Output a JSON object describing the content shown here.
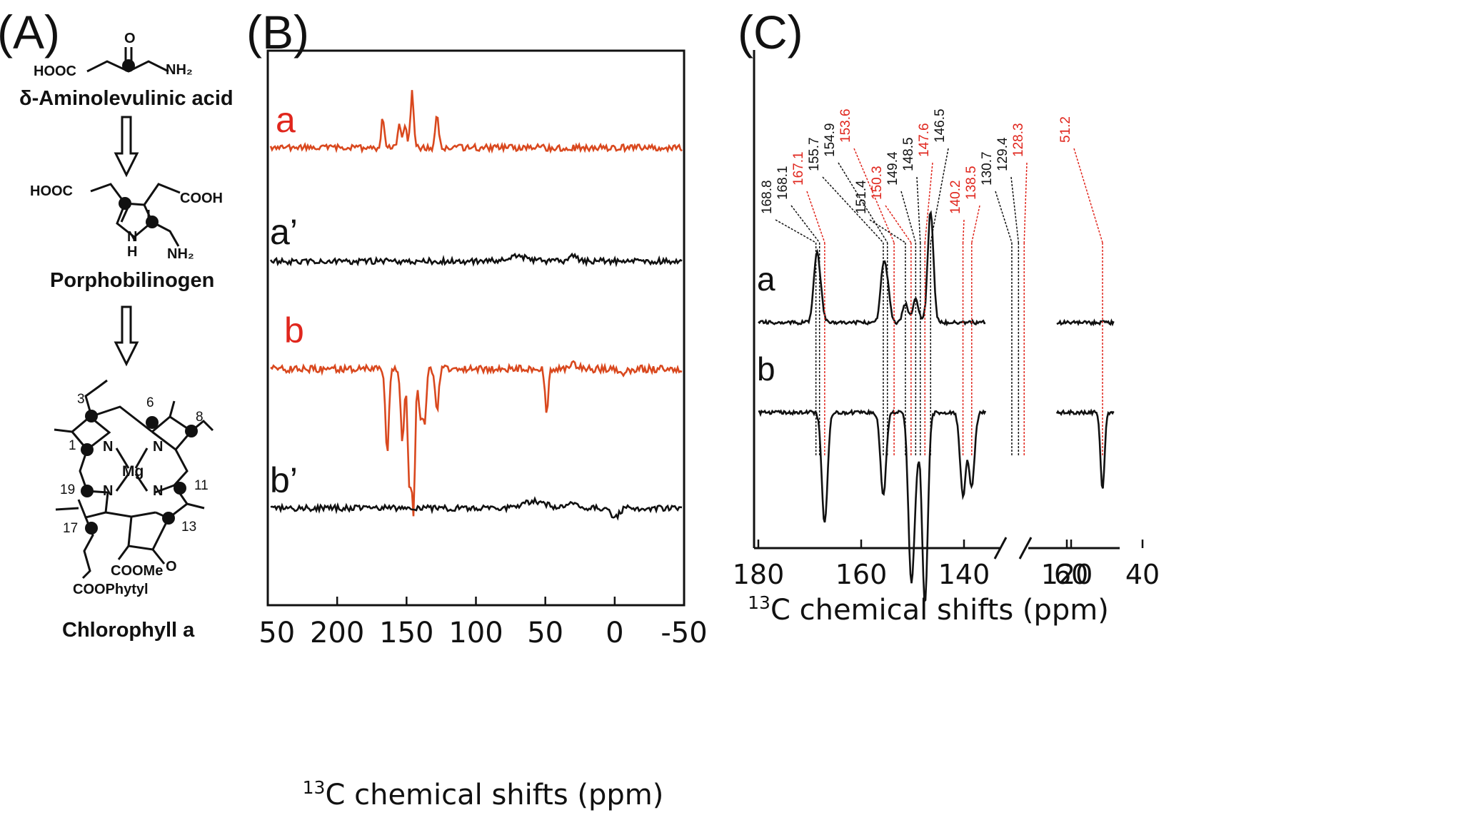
{
  "figure": {
    "panel_labels": [
      "(A)",
      "(B)",
      "(C)"
    ]
  },
  "panel_a": {
    "molecules": [
      {
        "name": "δ-Aminolevulinic acid",
        "groups": [
          "HOOC",
          "O",
          "NH₂"
        ]
      },
      {
        "name": "Porphobilinogen",
        "groups": [
          "HOOC",
          "COOH",
          "N",
          "H",
          "NH₂"
        ]
      },
      {
        "name": "Chlorophyll a",
        "groups": [
          "N",
          "N",
          "N",
          "N",
          "Mg",
          "COOMe",
          "O",
          "COOPhytyl"
        ]
      }
    ],
    "position_labels": [
      "3",
      "6",
      "8",
      "1",
      "19",
      "11",
      "17",
      "13"
    ]
  },
  "chart_data": [
    {
      "type": "line",
      "panel": "(B)",
      "xlabel": "¹³C chemical shifts (ppm)",
      "xlim": [
        250,
        -50
      ],
      "x_ticks": [
        250,
        200,
        150,
        100,
        50,
        0,
        -50
      ],
      "frame": "box",
      "grid": false,
      "series": [
        {
          "name": "a",
          "color": "#d9481e",
          "peaks": [
            {
              "x": 167,
              "y": 0.3
            },
            {
              "x": 155,
              "y": 0.22
            },
            {
              "x": 151,
              "y": 0.2
            },
            {
              "x": 146,
              "y": 0.55
            },
            {
              "x": 128,
              "y": 0.32
            }
          ]
        },
        {
          "name": "a’",
          "color": "#111111",
          "peaks": []
        },
        {
          "name": "b",
          "color": "#d9481e",
          "peaks": [
            {
              "x": 164,
              "y": -0.85
            },
            {
              "x": 153,
              "y": -0.75
            },
            {
              "x": 148,
              "y": -1.15
            },
            {
              "x": 145,
              "y": -1.4
            },
            {
              "x": 140,
              "y": -0.5
            },
            {
              "x": 137,
              "y": -0.55
            },
            {
              "x": 128,
              "y": -0.45
            },
            {
              "x": 49,
              "y": -0.42
            }
          ]
        },
        {
          "name": "b’",
          "color": "#111111",
          "peaks": []
        }
      ]
    },
    {
      "type": "line",
      "panel": "(C)",
      "xlabel": "¹³C chemical shifts (ppm)",
      "x_ticks": [
        180,
        160,
        140,
        120,
        60,
        40
      ],
      "axis_break": [
        120,
        60
      ],
      "frame": "left-bottom",
      "grid": false,
      "peak_labels_black": [
        "168.8",
        "168.1",
        "155.7",
        "154.9",
        "151.4",
        "149.4",
        "148.5",
        "146.5",
        "130.7",
        "129.4"
      ],
      "peak_labels_red": [
        "167.1",
        "153.6",
        "150.3",
        "147.6",
        "140.2",
        "138.5",
        "128.3",
        "51.2"
      ],
      "series": [
        {
          "name": "a",
          "color": "#111111",
          "peaks": [
            {
              "x": 168.8,
              "y": 0.55
            },
            {
              "x": 168.1,
              "y": 0.35
            },
            {
              "x": 155.7,
              "y": 0.55
            },
            {
              "x": 154.9,
              "y": 0.3
            },
            {
              "x": 151.4,
              "y": 0.2
            },
            {
              "x": 149.4,
              "y": 0.25
            },
            {
              "x": 146.5,
              "y": 1.2
            },
            {
              "x": 130.7,
              "y": 0.35
            },
            {
              "x": 129.4,
              "y": 0.65
            }
          ]
        },
        {
          "name": "b",
          "color": "#111111",
          "peaks": [
            {
              "x": 167.1,
              "y": -1.2
            },
            {
              "x": 155.7,
              "y": -0.9
            },
            {
              "x": 150.3,
              "y": -1.7
            },
            {
              "x": 149.4,
              "y": -0.5
            },
            {
              "x": 147.6,
              "y": -2.05
            },
            {
              "x": 140.2,
              "y": -0.9
            },
            {
              "x": 138.5,
              "y": -0.8
            },
            {
              "x": 128.3,
              "y": -0.9
            },
            {
              "x": 51.2,
              "y": -0.85
            }
          ]
        }
      ]
    }
  ]
}
